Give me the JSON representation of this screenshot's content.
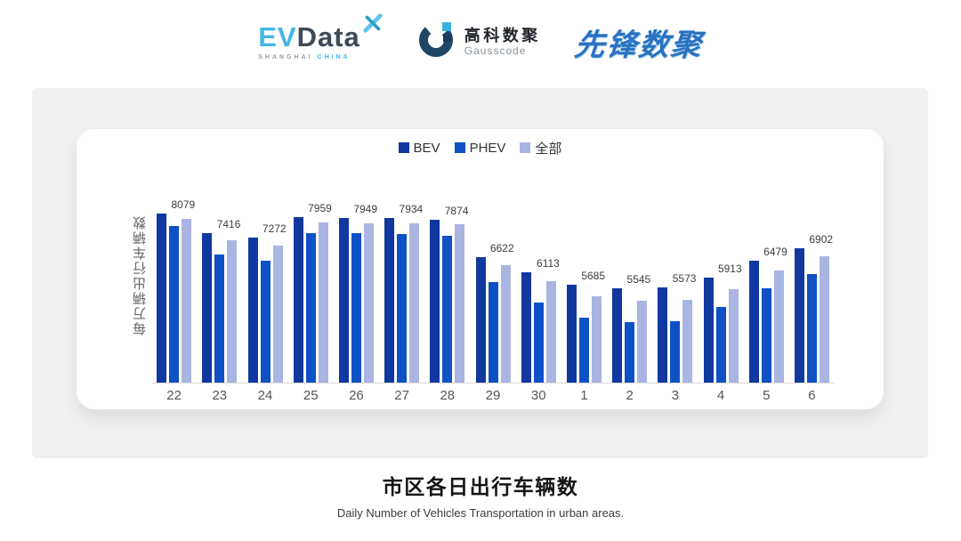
{
  "header": {
    "evdata": {
      "ev": "EV",
      "data": "Data",
      "sub_left": "SHANGHAI",
      "sub_right": "CHINA"
    },
    "gausscode": {
      "name_cn": "高科数聚",
      "name_en": "Gausscode"
    },
    "xianfeng": {
      "text": "先锋数聚"
    },
    "brand_colors": {
      "evdata_blue": "#45b7e5",
      "evdata_dark": "#3e4a55",
      "gausscode_navy": "#1e4666",
      "gausscode_cyan": "#38b1dc",
      "xianfeng_blue": "#2a72c0"
    }
  },
  "chart_data": {
    "type": "bar",
    "title": "市区各日出行车辆数",
    "subtitle": "Daily Number of Vehicles Transportation in urban areas.",
    "ylabel": "每万辆出行车辆数",
    "xlabel": "",
    "categories": [
      "22",
      "23",
      "24",
      "25",
      "26",
      "27",
      "28",
      "29",
      "30",
      "1",
      "2",
      "3",
      "4",
      "5",
      "6"
    ],
    "series": [
      {
        "name": "BEV",
        "color": "#10389f",
        "values": [
          8079,
          7416,
          7272,
          7959,
          7949,
          7934,
          7874,
          6622,
          6113,
          5685,
          5545,
          5573,
          5913,
          6479,
          6902
        ]
      },
      {
        "name": "PHEV",
        "color": "#0e51c4",
        "values": [
          7660,
          6712,
          6493,
          7430,
          7421,
          7391,
          7340,
          5766,
          5087,
          4549,
          4420,
          4450,
          4917,
          5557,
          6045
        ]
      },
      {
        "name": "全部",
        "color": "#aab5e2",
        "values": [
          7909,
          7190,
          7011,
          7780,
          7771,
          7750,
          7720,
          6344,
          5784,
          5296,
          5126,
          5168,
          5536,
          6164,
          6634
        ]
      }
    ],
    "data_labels_series": "BEV",
    "data_labels": [
      8079,
      7416,
      7272,
      7959,
      7949,
      7934,
      7874,
      6622,
      6113,
      5685,
      5545,
      5573,
      5913,
      6479,
      6902
    ],
    "legend_position": "top",
    "grid": false,
    "y_axis": {
      "tick_labels_visible": false,
      "implied_min": 2364,
      "implied_max": 8450
    },
    "axis_line_color": "#d9d9d9"
  },
  "footer": {
    "title": "市区各日出行车辆数",
    "subtitle": "Daily Number of Vehicles Transportation in urban areas."
  }
}
